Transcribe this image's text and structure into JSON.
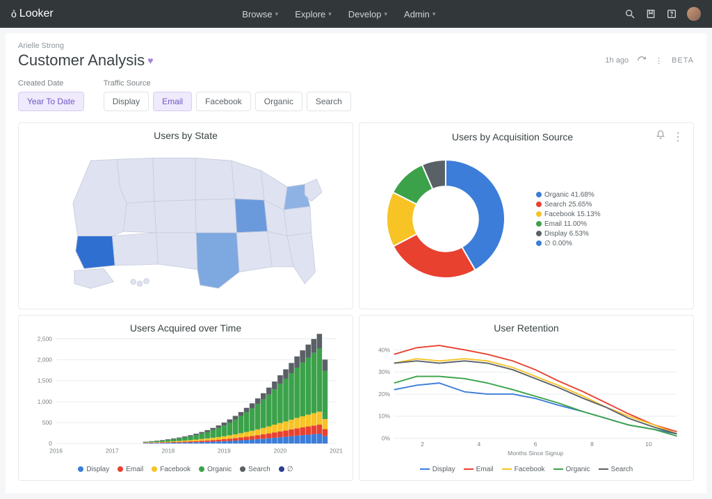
{
  "topbar": {
    "brand": "Looker",
    "nav": [
      "Browse",
      "Explore",
      "Develop",
      "Admin"
    ]
  },
  "header": {
    "breadcrumb": "Arielle Strong",
    "title": "Customer Analysis",
    "timestamp": "1h ago",
    "beta_label": "BETA"
  },
  "filters": {
    "created_date": {
      "label": "Created Date",
      "selected": "Year To Date"
    },
    "traffic_source": {
      "label": "Traffic Source",
      "options": [
        "Display",
        "Email",
        "Facebook",
        "Organic",
        "Search"
      ],
      "selected": "Email"
    }
  },
  "cards": {
    "map": {
      "title": "Users by State",
      "type": "choropleth",
      "base_color": "#dfe3f1",
      "outline_color": "#c9cee0",
      "highlight_states": {
        "California": "#2f6fd0",
        "Texas": "#7ea8e0",
        "Illinois": "#6b9adc",
        "New York": "#8eb2e4"
      }
    },
    "donut": {
      "title": "Users by Acquisition Source",
      "type": "donut",
      "inner_radius_ratio": 0.55,
      "slices": [
        {
          "label": "Organic",
          "pct": 41.68,
          "color": "#3b7dd8"
        },
        {
          "label": "Search",
          "pct": 25.65,
          "color": "#e8412f"
        },
        {
          "label": "Facebook",
          "pct": 15.13,
          "color": "#f7c325"
        },
        {
          "label": "Email",
          "pct": 11.0,
          "color": "#3ba24a"
        },
        {
          "label": "Display",
          "pct": 6.53,
          "color": "#5a6166"
        },
        {
          "label": "∅",
          "pct": 0.0,
          "color": "#3b7dd8"
        }
      ],
      "legend_format": "{label} {pct}%"
    },
    "stacked": {
      "title": "Users Acquired over Time",
      "type": "stacked-bar",
      "x_start": 2016,
      "x_end": 2021,
      "x_tick_step": 1,
      "y_min": 0,
      "y_max": 2500,
      "y_tick_step": 500,
      "series_order": [
        "Display",
        "Email",
        "Facebook",
        "Organic",
        "Search",
        "∅"
      ],
      "series_colors": {
        "Display": "#3b7dd8",
        "Email": "#e8412f",
        "Facebook": "#f7c325",
        "Organic": "#3ba24a",
        "Search": "#5a6166",
        "∅": "#2c3e8f"
      },
      "bars": [
        {
          "x": 2017.6,
          "v": {
            "Display": 10,
            "Email": 8,
            "Facebook": 6,
            "Organic": 15,
            "Search": 6,
            "∅": 0
          }
        },
        {
          "x": 2017.7,
          "v": {
            "Display": 12,
            "Email": 9,
            "Facebook": 8,
            "Organic": 20,
            "Search": 8,
            "∅": 0
          }
        },
        {
          "x": 2017.8,
          "v": {
            "Display": 14,
            "Email": 10,
            "Facebook": 10,
            "Organic": 25,
            "Search": 10,
            "∅": 0
          }
        },
        {
          "x": 2017.9,
          "v": {
            "Display": 16,
            "Email": 12,
            "Facebook": 12,
            "Organic": 30,
            "Search": 12,
            "∅": 0
          }
        },
        {
          "x": 2018.0,
          "v": {
            "Display": 18,
            "Email": 14,
            "Facebook": 14,
            "Organic": 40,
            "Search": 15,
            "∅": 0
          }
        },
        {
          "x": 2018.1,
          "v": {
            "Display": 20,
            "Email": 16,
            "Facebook": 18,
            "Organic": 50,
            "Search": 18,
            "∅": 0
          }
        },
        {
          "x": 2018.2,
          "v": {
            "Display": 22,
            "Email": 18,
            "Facebook": 22,
            "Organic": 62,
            "Search": 20,
            "∅": 0
          }
        },
        {
          "x": 2018.3,
          "v": {
            "Display": 25,
            "Email": 20,
            "Facebook": 26,
            "Organic": 75,
            "Search": 24,
            "∅": 0
          }
        },
        {
          "x": 2018.4,
          "v": {
            "Display": 28,
            "Email": 23,
            "Facebook": 30,
            "Organic": 90,
            "Search": 28,
            "∅": 0
          }
        },
        {
          "x": 2018.5,
          "v": {
            "Display": 32,
            "Email": 26,
            "Facebook": 36,
            "Organic": 110,
            "Search": 32,
            "∅": 0
          }
        },
        {
          "x": 2018.6,
          "v": {
            "Display": 36,
            "Email": 30,
            "Facebook": 42,
            "Organic": 130,
            "Search": 38,
            "∅": 0
          }
        },
        {
          "x": 2018.7,
          "v": {
            "Display": 40,
            "Email": 34,
            "Facebook": 48,
            "Organic": 155,
            "Search": 44,
            "∅": 0
          }
        },
        {
          "x": 2018.8,
          "v": {
            "Display": 45,
            "Email": 38,
            "Facebook": 55,
            "Organic": 185,
            "Search": 50,
            "∅": 0
          }
        },
        {
          "x": 2018.9,
          "v": {
            "Display": 50,
            "Email": 42,
            "Facebook": 62,
            "Organic": 220,
            "Search": 58,
            "∅": 0
          }
        },
        {
          "x": 2019.0,
          "v": {
            "Display": 56,
            "Email": 48,
            "Facebook": 70,
            "Organic": 260,
            "Search": 66,
            "∅": 0
          }
        },
        {
          "x": 2019.1,
          "v": {
            "Display": 62,
            "Email": 54,
            "Facebook": 80,
            "Organic": 305,
            "Search": 75,
            "∅": 0
          }
        },
        {
          "x": 2019.2,
          "v": {
            "Display": 70,
            "Email": 60,
            "Facebook": 90,
            "Organic": 355,
            "Search": 85,
            "∅": 0
          }
        },
        {
          "x": 2019.3,
          "v": {
            "Display": 78,
            "Email": 68,
            "Facebook": 100,
            "Organic": 410,
            "Search": 96,
            "∅": 0
          }
        },
        {
          "x": 2019.4,
          "v": {
            "Display": 86,
            "Email": 76,
            "Facebook": 112,
            "Organic": 470,
            "Search": 108,
            "∅": 0
          }
        },
        {
          "x": 2019.5,
          "v": {
            "Display": 95,
            "Email": 85,
            "Facebook": 125,
            "Organic": 535,
            "Search": 120,
            "∅": 0
          }
        },
        {
          "x": 2019.6,
          "v": {
            "Display": 105,
            "Email": 95,
            "Facebook": 138,
            "Organic": 605,
            "Search": 135,
            "∅": 0
          }
        },
        {
          "x": 2019.7,
          "v": {
            "Display": 115,
            "Email": 105,
            "Facebook": 152,
            "Organic": 680,
            "Search": 150,
            "∅": 0
          }
        },
        {
          "x": 2019.8,
          "v": {
            "Display": 126,
            "Email": 116,
            "Facebook": 168,
            "Organic": 760,
            "Search": 166,
            "∅": 0
          }
        },
        {
          "x": 2019.9,
          "v": {
            "Display": 138,
            "Email": 128,
            "Facebook": 185,
            "Organic": 845,
            "Search": 184,
            "∅": 0
          }
        },
        {
          "x": 2020.0,
          "v": {
            "Display": 150,
            "Email": 140,
            "Facebook": 200,
            "Organic": 935,
            "Search": 205,
            "∅": 0
          }
        },
        {
          "x": 2020.1,
          "v": {
            "Display": 162,
            "Email": 150,
            "Facebook": 215,
            "Organic": 1020,
            "Search": 225,
            "∅": 0
          }
        },
        {
          "x": 2020.2,
          "v": {
            "Display": 175,
            "Email": 162,
            "Facebook": 232,
            "Organic": 1110,
            "Search": 245,
            "∅": 0
          }
        },
        {
          "x": 2020.3,
          "v": {
            "Display": 188,
            "Email": 174,
            "Facebook": 250,
            "Organic": 1200,
            "Search": 268,
            "∅": 0
          }
        },
        {
          "x": 2020.4,
          "v": {
            "Display": 200,
            "Email": 185,
            "Facebook": 265,
            "Organic": 1285,
            "Search": 290,
            "∅": 0
          }
        },
        {
          "x": 2020.5,
          "v": {
            "Display": 212,
            "Email": 196,
            "Facebook": 280,
            "Organic": 1365,
            "Search": 310,
            "∅": 0
          }
        },
        {
          "x": 2020.6,
          "v": {
            "Display": 224,
            "Email": 206,
            "Facebook": 296,
            "Organic": 1440,
            "Search": 330,
            "∅": 0
          }
        },
        {
          "x": 2020.7,
          "v": {
            "Display": 235,
            "Email": 216,
            "Facebook": 310,
            "Organic": 1508,
            "Search": 350,
            "∅": 0
          }
        },
        {
          "x": 2020.8,
          "v": {
            "Display": 180,
            "Email": 165,
            "Facebook": 240,
            "Organic": 1150,
            "Search": 270,
            "∅": 0
          }
        }
      ]
    },
    "retention": {
      "title": "User Retention",
      "type": "line",
      "x_axis_label": "Months Since Signup",
      "x_min": 1,
      "x_max": 11,
      "x_ticks": [
        2,
        4,
        6,
        8,
        10
      ],
      "y_min": 0,
      "y_max": 45,
      "y_ticks": [
        0,
        10,
        20,
        30,
        40
      ],
      "y_suffix": "%",
      "series_colors": {
        "Display": "#3b7dd8",
        "Email": "#e8412f",
        "Facebook": "#f7c325",
        "Organic": "#3ba24a",
        "Search": "#5a6166"
      },
      "series": {
        "Display": [
          22,
          24,
          25,
          21,
          20,
          20,
          18,
          15,
          12,
          9,
          6,
          4,
          2
        ],
        "Email": [
          38,
          41,
          42,
          40,
          38,
          35,
          31,
          26,
          21,
          16,
          11,
          6,
          3
        ],
        "Facebook": [
          34,
          36,
          35,
          36,
          35,
          32,
          28,
          24,
          19,
          14,
          10,
          6,
          2
        ],
        "Organic": [
          25,
          28,
          28,
          27,
          25,
          22,
          19,
          16,
          12,
          9,
          6,
          4,
          1
        ],
        "Search": [
          34,
          35,
          34,
          35,
          34,
          31,
          27,
          23,
          18,
          14,
          9,
          5,
          2
        ]
      },
      "x_points": [
        1,
        1.8,
        2.6,
        3.5,
        4.3,
        5.2,
        6,
        6.8,
        7.7,
        8.5,
        9.3,
        10.2,
        11
      ]
    }
  }
}
